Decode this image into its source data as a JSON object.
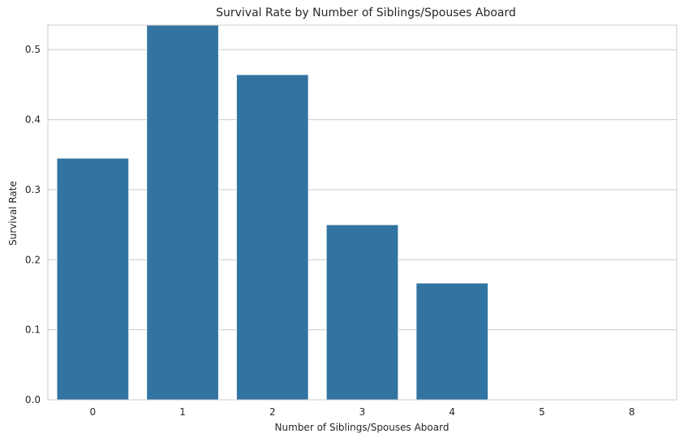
{
  "chart_data": {
    "type": "bar",
    "title": "Survival Rate by Number of Siblings/Spouses Aboard",
    "xlabel": "Number of Siblings/Spouses Aboard",
    "ylabel": "Survival Rate",
    "categories": [
      "0",
      "1",
      "2",
      "3",
      "4",
      "5",
      "8"
    ],
    "values": [
      0.345,
      0.5359,
      0.4643,
      0.25,
      0.1667,
      0,
      0
    ],
    "ylim": [
      0,
      0.535
    ],
    "yticks": [
      0.0,
      0.1,
      0.2,
      0.3,
      0.4,
      0.5
    ],
    "ytick_labels": [
      "0.0",
      "0.1",
      "0.2",
      "0.3",
      "0.4",
      "0.5"
    ],
    "grid": "horizontal",
    "legend": "none",
    "colors": {
      "bar": "#3274a1",
      "grid": "#cccccc",
      "frame": "#cccccc",
      "background": "#ffffff",
      "text": "#262626"
    }
  }
}
